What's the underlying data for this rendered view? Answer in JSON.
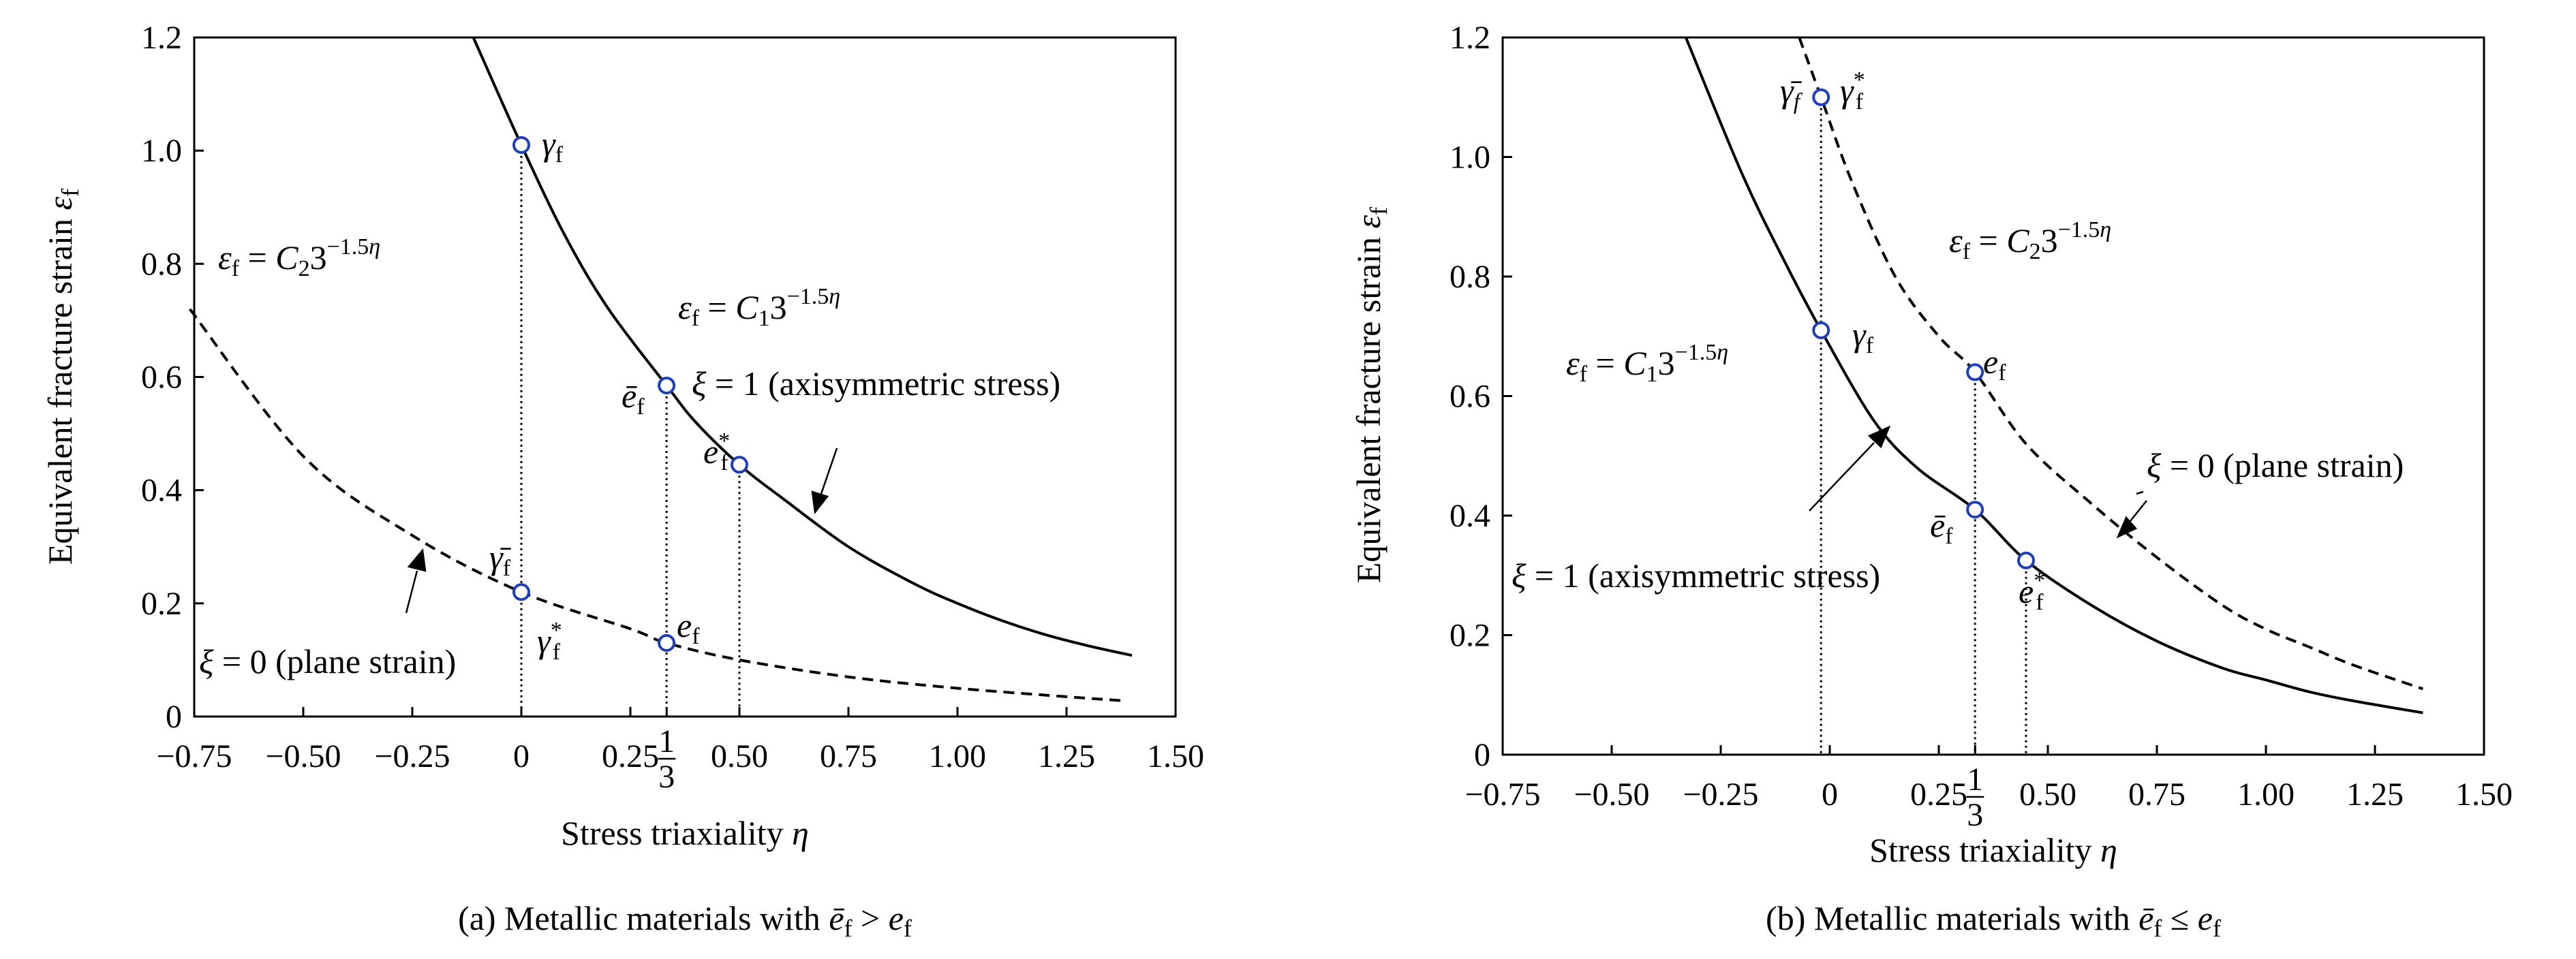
{
  "chart_data": [
    {
      "type": "line",
      "xlabel": "Stress triaxiality η",
      "ylabel": "Equivalent fracture strain εf",
      "caption": "(a) Metallic materials with ēf > ef",
      "xlim": [
        -0.75,
        1.5
      ],
      "ylim": [
        0,
        1.2
      ],
      "x_ticks": [
        "−0.75",
        "−0.50",
        "−0.25",
        "0",
        "0.25",
        "1/3",
        "0.50",
        "0.75",
        "1.00",
        "1.25",
        "1.50"
      ],
      "x_tick_values": [
        -0.75,
        -0.5,
        -0.25,
        0,
        0.25,
        0.3333,
        0.5,
        0.75,
        1.0,
        1.25,
        1.5
      ],
      "y_ticks": [
        "0",
        "0.2",
        "0.4",
        "0.6",
        "0.8",
        "1.0",
        "1.2"
      ],
      "y_tick_values": [
        0,
        0.2,
        0.4,
        0.6,
        0.8,
        1.0,
        1.2
      ],
      "series": [
        {
          "formula": "εf = C13^(−1.5η)",
          "label": "ξ = 1 (axisymmetric stress)",
          "style": "solid",
          "x": [
            -0.11,
            0.0,
            0.1,
            0.2,
            0.333,
            0.4,
            0.5,
            0.6,
            0.75,
            0.9,
            1.0,
            1.1,
            1.2,
            1.3,
            1.4
          ],
          "y": [
            1.2,
            1.01,
            0.85,
            0.72,
            0.585,
            0.52,
            0.445,
            0.385,
            0.3,
            0.235,
            0.2,
            0.17,
            0.145,
            0.125,
            0.108
          ]
        },
        {
          "formula": "εf = C23^(−1.5η)",
          "label": "ξ = 0 (plane strain)",
          "style": "dashed",
          "x": [
            -0.76,
            -0.5,
            -0.25,
            0.0,
            0.25,
            0.333,
            0.5,
            0.75,
            1.0,
            1.25,
            1.38
          ],
          "y": [
            0.72,
            0.46,
            0.32,
            0.22,
            0.155,
            0.13,
            0.1,
            0.07,
            0.05,
            0.035,
            0.028
          ]
        }
      ],
      "points": [
        {
          "label": "γf",
          "x": 0.0,
          "y": 1.01
        },
        {
          "label": "γ̄f",
          "x": 0.0,
          "y": 0.22
        },
        {
          "label": "γf*",
          "x": 0.0,
          "y": 0.22
        },
        {
          "label": "ēf",
          "x": 0.333,
          "y": 0.585
        },
        {
          "label": "ef*",
          "x": 0.5,
          "y": 0.445
        },
        {
          "label": "ef",
          "x": 0.333,
          "y": 0.13
        }
      ]
    },
    {
      "type": "line",
      "xlabel": "Stress triaxiality η",
      "ylabel": "Equivalent fracture strain εf",
      "caption": "(b) Metallic materials with ēf ≤ ef",
      "xlim": [
        -0.75,
        1.5
      ],
      "ylim": [
        0,
        1.2
      ],
      "x_ticks": [
        "−0.75",
        "−0.50",
        "−0.25",
        "0",
        "0.25",
        "1/3",
        "0.50",
        "0.75",
        "1.00",
        "1.25",
        "1.50"
      ],
      "x_tick_values": [
        -0.75,
        -0.5,
        -0.25,
        0,
        0.25,
        0.3333,
        0.5,
        0.75,
        1.0,
        1.25,
        1.5
      ],
      "y_ticks": [
        "0",
        "0.2",
        "0.4",
        "0.6",
        "0.8",
        "1.0",
        "1.2"
      ],
      "y_tick_values": [
        0,
        0.2,
        0.4,
        0.6,
        0.8,
        1.0,
        1.2
      ],
      "series": [
        {
          "formula": "εf = C13^(−1.5η)",
          "label": "ξ = 1 (axisymmetric stress)",
          "style": "solid",
          "x": [
            -0.33,
            -0.2,
            -0.1,
            -0.02,
            0.1,
            0.2,
            0.333,
            0.45,
            0.6,
            0.75,
            0.9,
            1.0,
            1.1,
            1.2,
            1.36
          ],
          "y": [
            1.2,
            0.97,
            0.82,
            0.71,
            0.56,
            0.48,
            0.41,
            0.325,
            0.25,
            0.19,
            0.145,
            0.125,
            0.105,
            0.09,
            0.07
          ]
        },
        {
          "formula": "εf = C23^(−1.5η)",
          "label": "ξ = 0 (plane strain)",
          "style": "dashed",
          "x": [
            -0.07,
            -0.02,
            0.05,
            0.15,
            0.25,
            0.333,
            0.45,
            0.6,
            0.75,
            0.9,
            1.0,
            1.1,
            1.2,
            1.36
          ],
          "y": [
            1.2,
            1.1,
            0.96,
            0.8,
            0.7,
            0.64,
            0.52,
            0.42,
            0.33,
            0.25,
            0.21,
            0.18,
            0.15,
            0.11
          ]
        }
      ],
      "points": [
        {
          "label": "γ̄f",
          "x": -0.02,
          "y": 1.1
        },
        {
          "label": "γf*",
          "x": -0.02,
          "y": 1.1
        },
        {
          "label": "γf",
          "x": -0.02,
          "y": 0.71
        },
        {
          "label": "ef",
          "x": 0.333,
          "y": 0.64
        },
        {
          "label": "ēf",
          "x": 0.333,
          "y": 0.41
        },
        {
          "label": "ef*",
          "x": 0.45,
          "y": 0.325
        }
      ]
    }
  ],
  "colors": {
    "marker": "#1f3fb5",
    "line": "#000000"
  }
}
